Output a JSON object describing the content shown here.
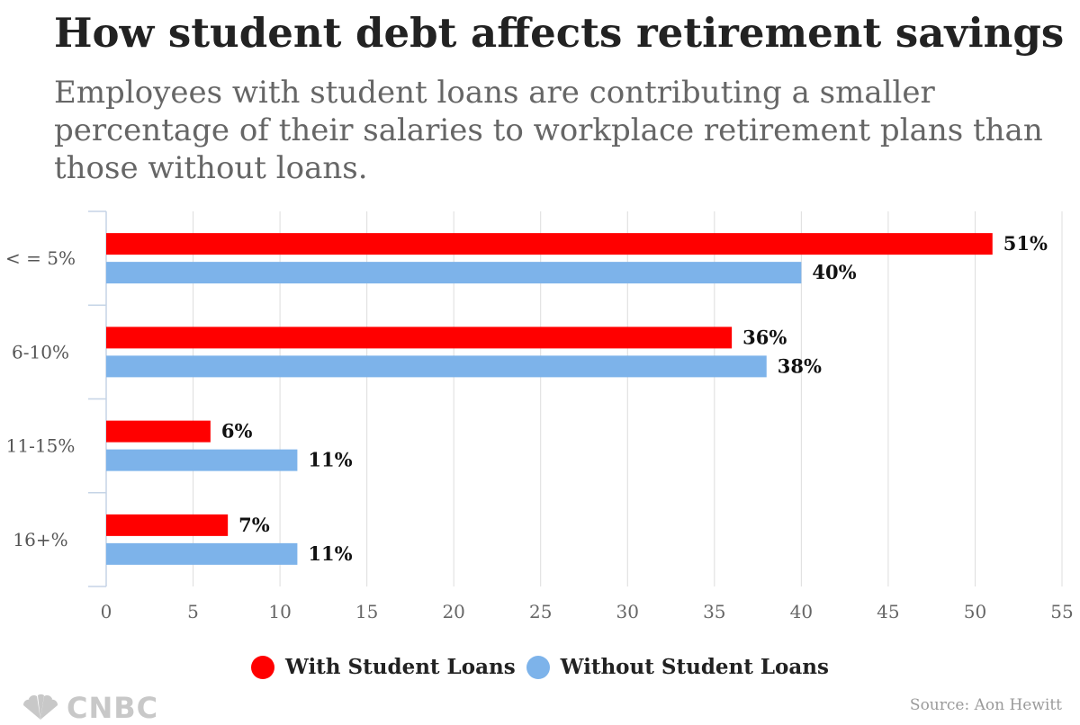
{
  "header": {
    "title": "How student debt affects retirement savings",
    "subtitle": "Employees with student loans are contributing a smaller percentage of their salaries to workplace retirement plans than those without loans."
  },
  "chart_data": {
    "type": "bar",
    "orientation": "horizontal",
    "title": "How student debt affects retirement savings",
    "subtitle": "Employees with student loans are contributing a smaller percentage of their salaries to workplace retirement plans than those without loans.",
    "categories": [
      "< = 5%",
      "6-10%",
      "11-15%",
      "16+%"
    ],
    "series": [
      {
        "name": "With Student Loans",
        "color": "#ff0000",
        "values": [
          51,
          36,
          6,
          7
        ],
        "labels": [
          "51%",
          "36%",
          "6%",
          "7%"
        ]
      },
      {
        "name": "Without Student Loans",
        "color": "#7db3ea",
        "values": [
          40,
          38,
          11,
          11
        ],
        "labels": [
          "40%",
          "38%",
          "11%",
          "11%"
        ]
      }
    ],
    "xlim": [
      0,
      55
    ],
    "xticks": [
      0,
      5,
      10,
      15,
      20,
      25,
      30,
      35,
      40,
      45,
      50,
      55
    ],
    "xlabel": "",
    "ylabel": "",
    "grid": true,
    "legend_position": "bottom-center"
  },
  "legend": {
    "items": [
      {
        "label": "With Student Loans",
        "color": "#ff0000"
      },
      {
        "label": "Without Student Loans",
        "color": "#7db3ea"
      }
    ]
  },
  "footer": {
    "logo": "CNBC",
    "source": "Source: Aon Hewitt"
  }
}
